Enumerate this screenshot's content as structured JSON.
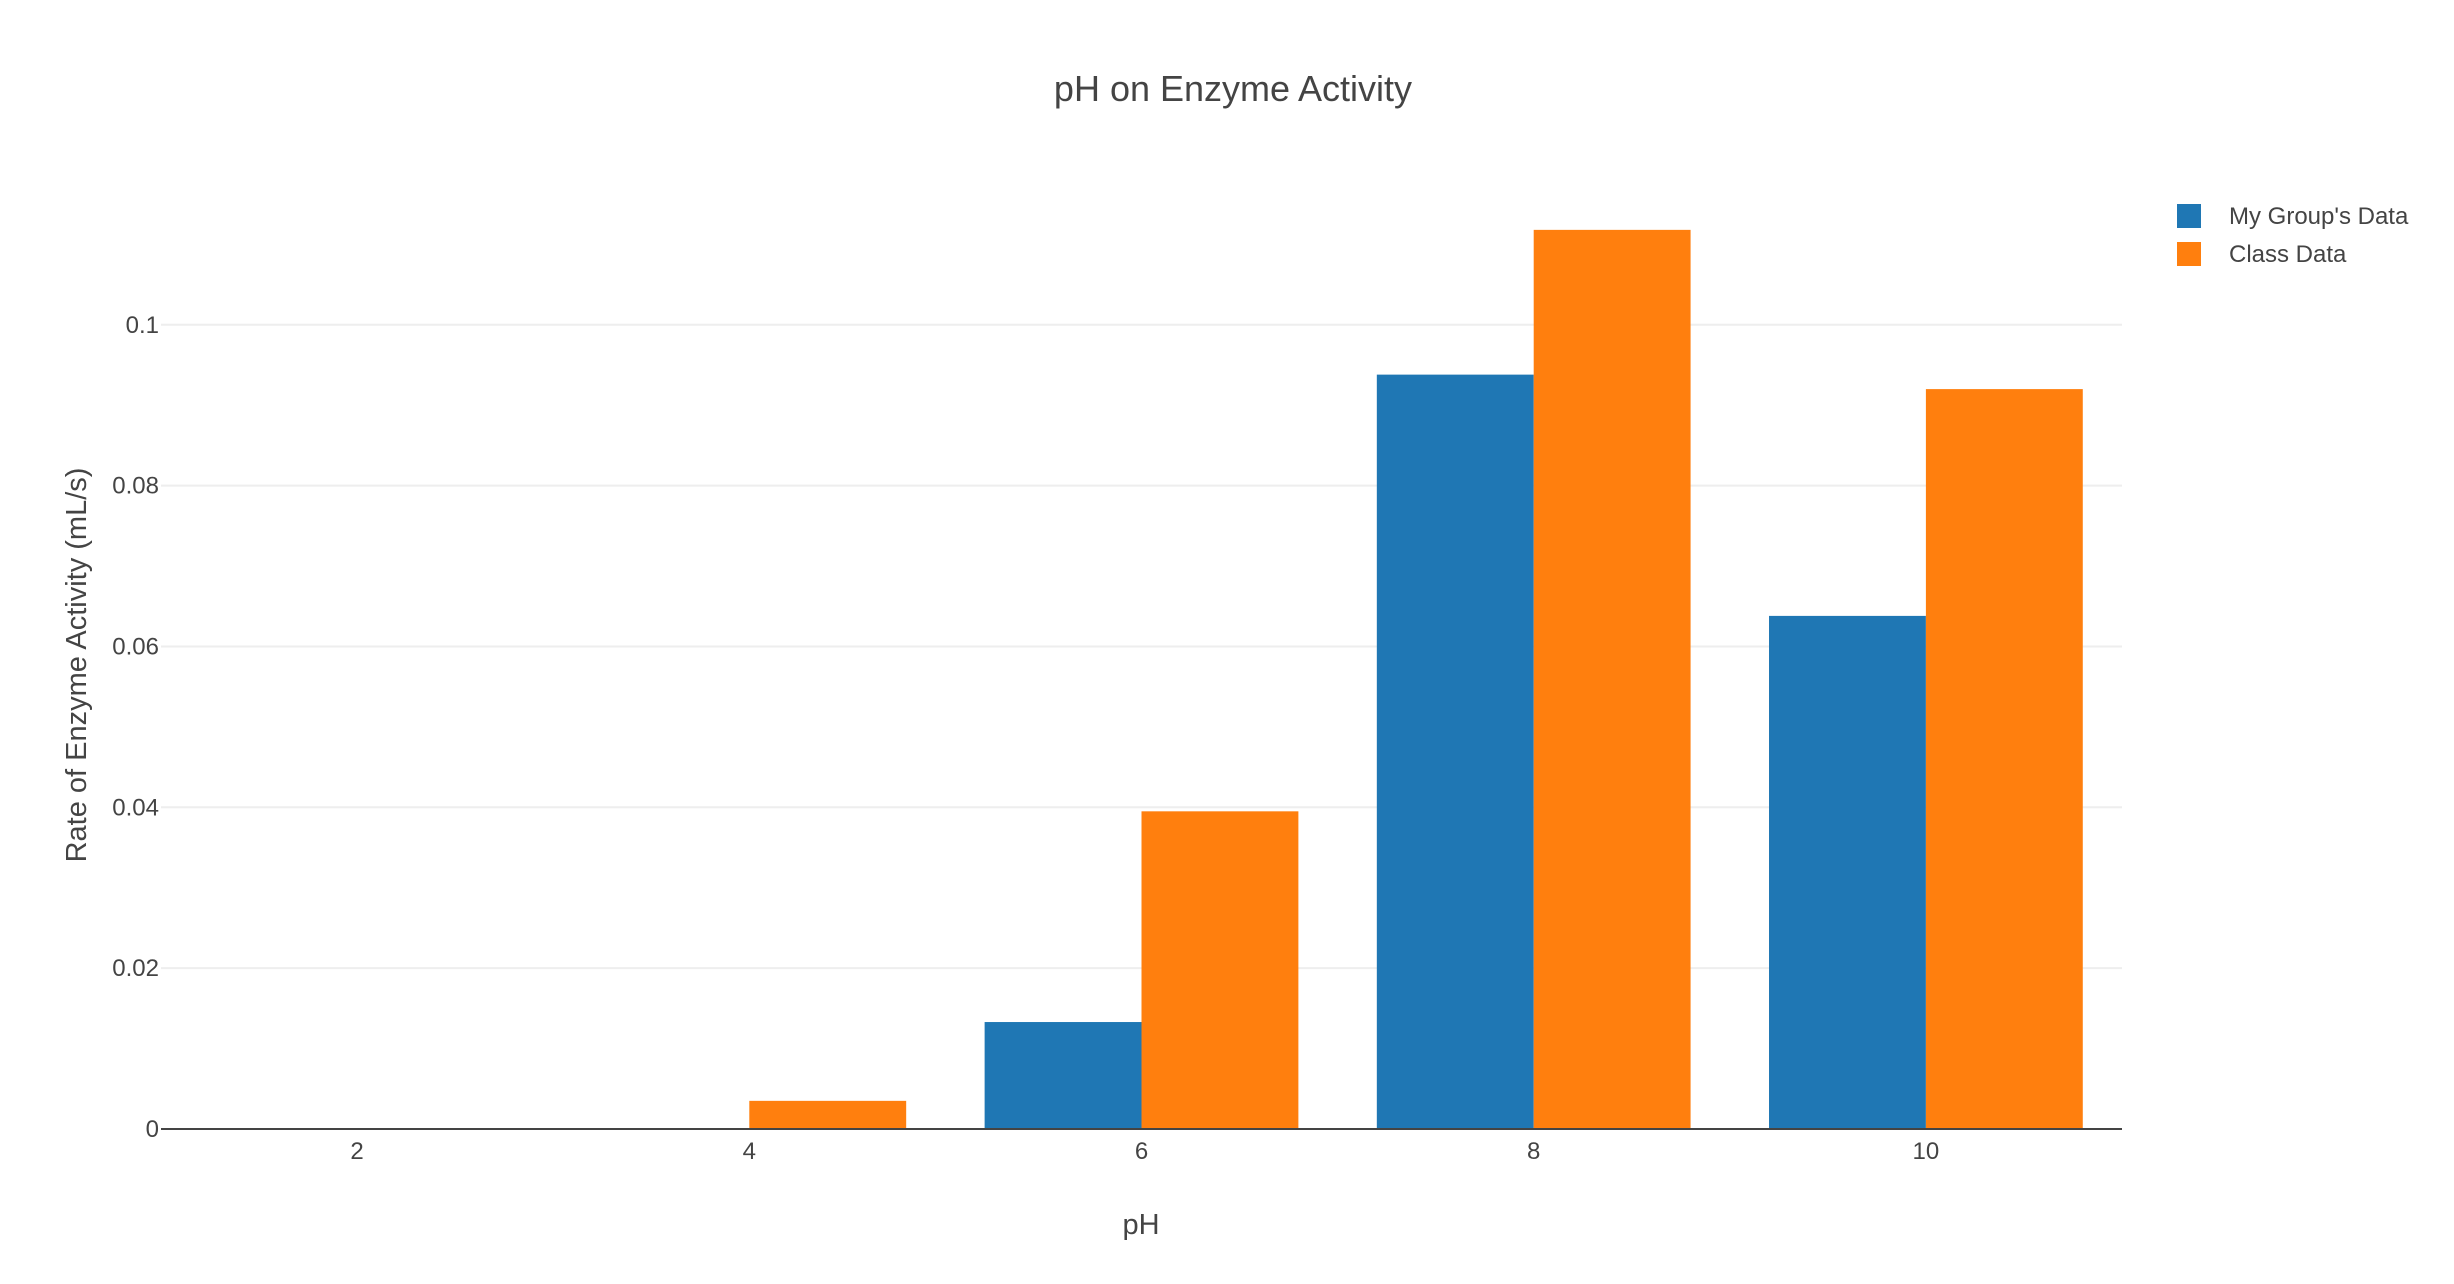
{
  "chart_data": {
    "type": "bar",
    "title": "pH on Enzyme Activity",
    "xlabel": "pH",
    "ylabel": "Rate of Enzyme Activity (mL/s)",
    "categories": [
      2,
      4,
      6,
      8,
      10
    ],
    "x_ticks": [
      "2",
      "4",
      "6",
      "8",
      "10"
    ],
    "y_ticks": [
      0,
      0.02,
      0.04,
      0.06,
      0.08,
      0.1
    ],
    "y_tick_labels": [
      "0",
      "0.02",
      "0.04",
      "0.06",
      "0.08",
      "0.1"
    ],
    "ylim": [
      0,
      0.118
    ],
    "grid": true,
    "legend_position": "top-right",
    "series": [
      {
        "name": "My Group's Data",
        "color": "#1f77b4",
        "values": [
          0,
          0,
          0.0133,
          0.0938,
          0.0638
        ]
      },
      {
        "name": "Class Data",
        "color": "#ff7f0e",
        "values": [
          0,
          0.0035,
          0.0395,
          0.1118,
          0.092
        ]
      }
    ]
  }
}
